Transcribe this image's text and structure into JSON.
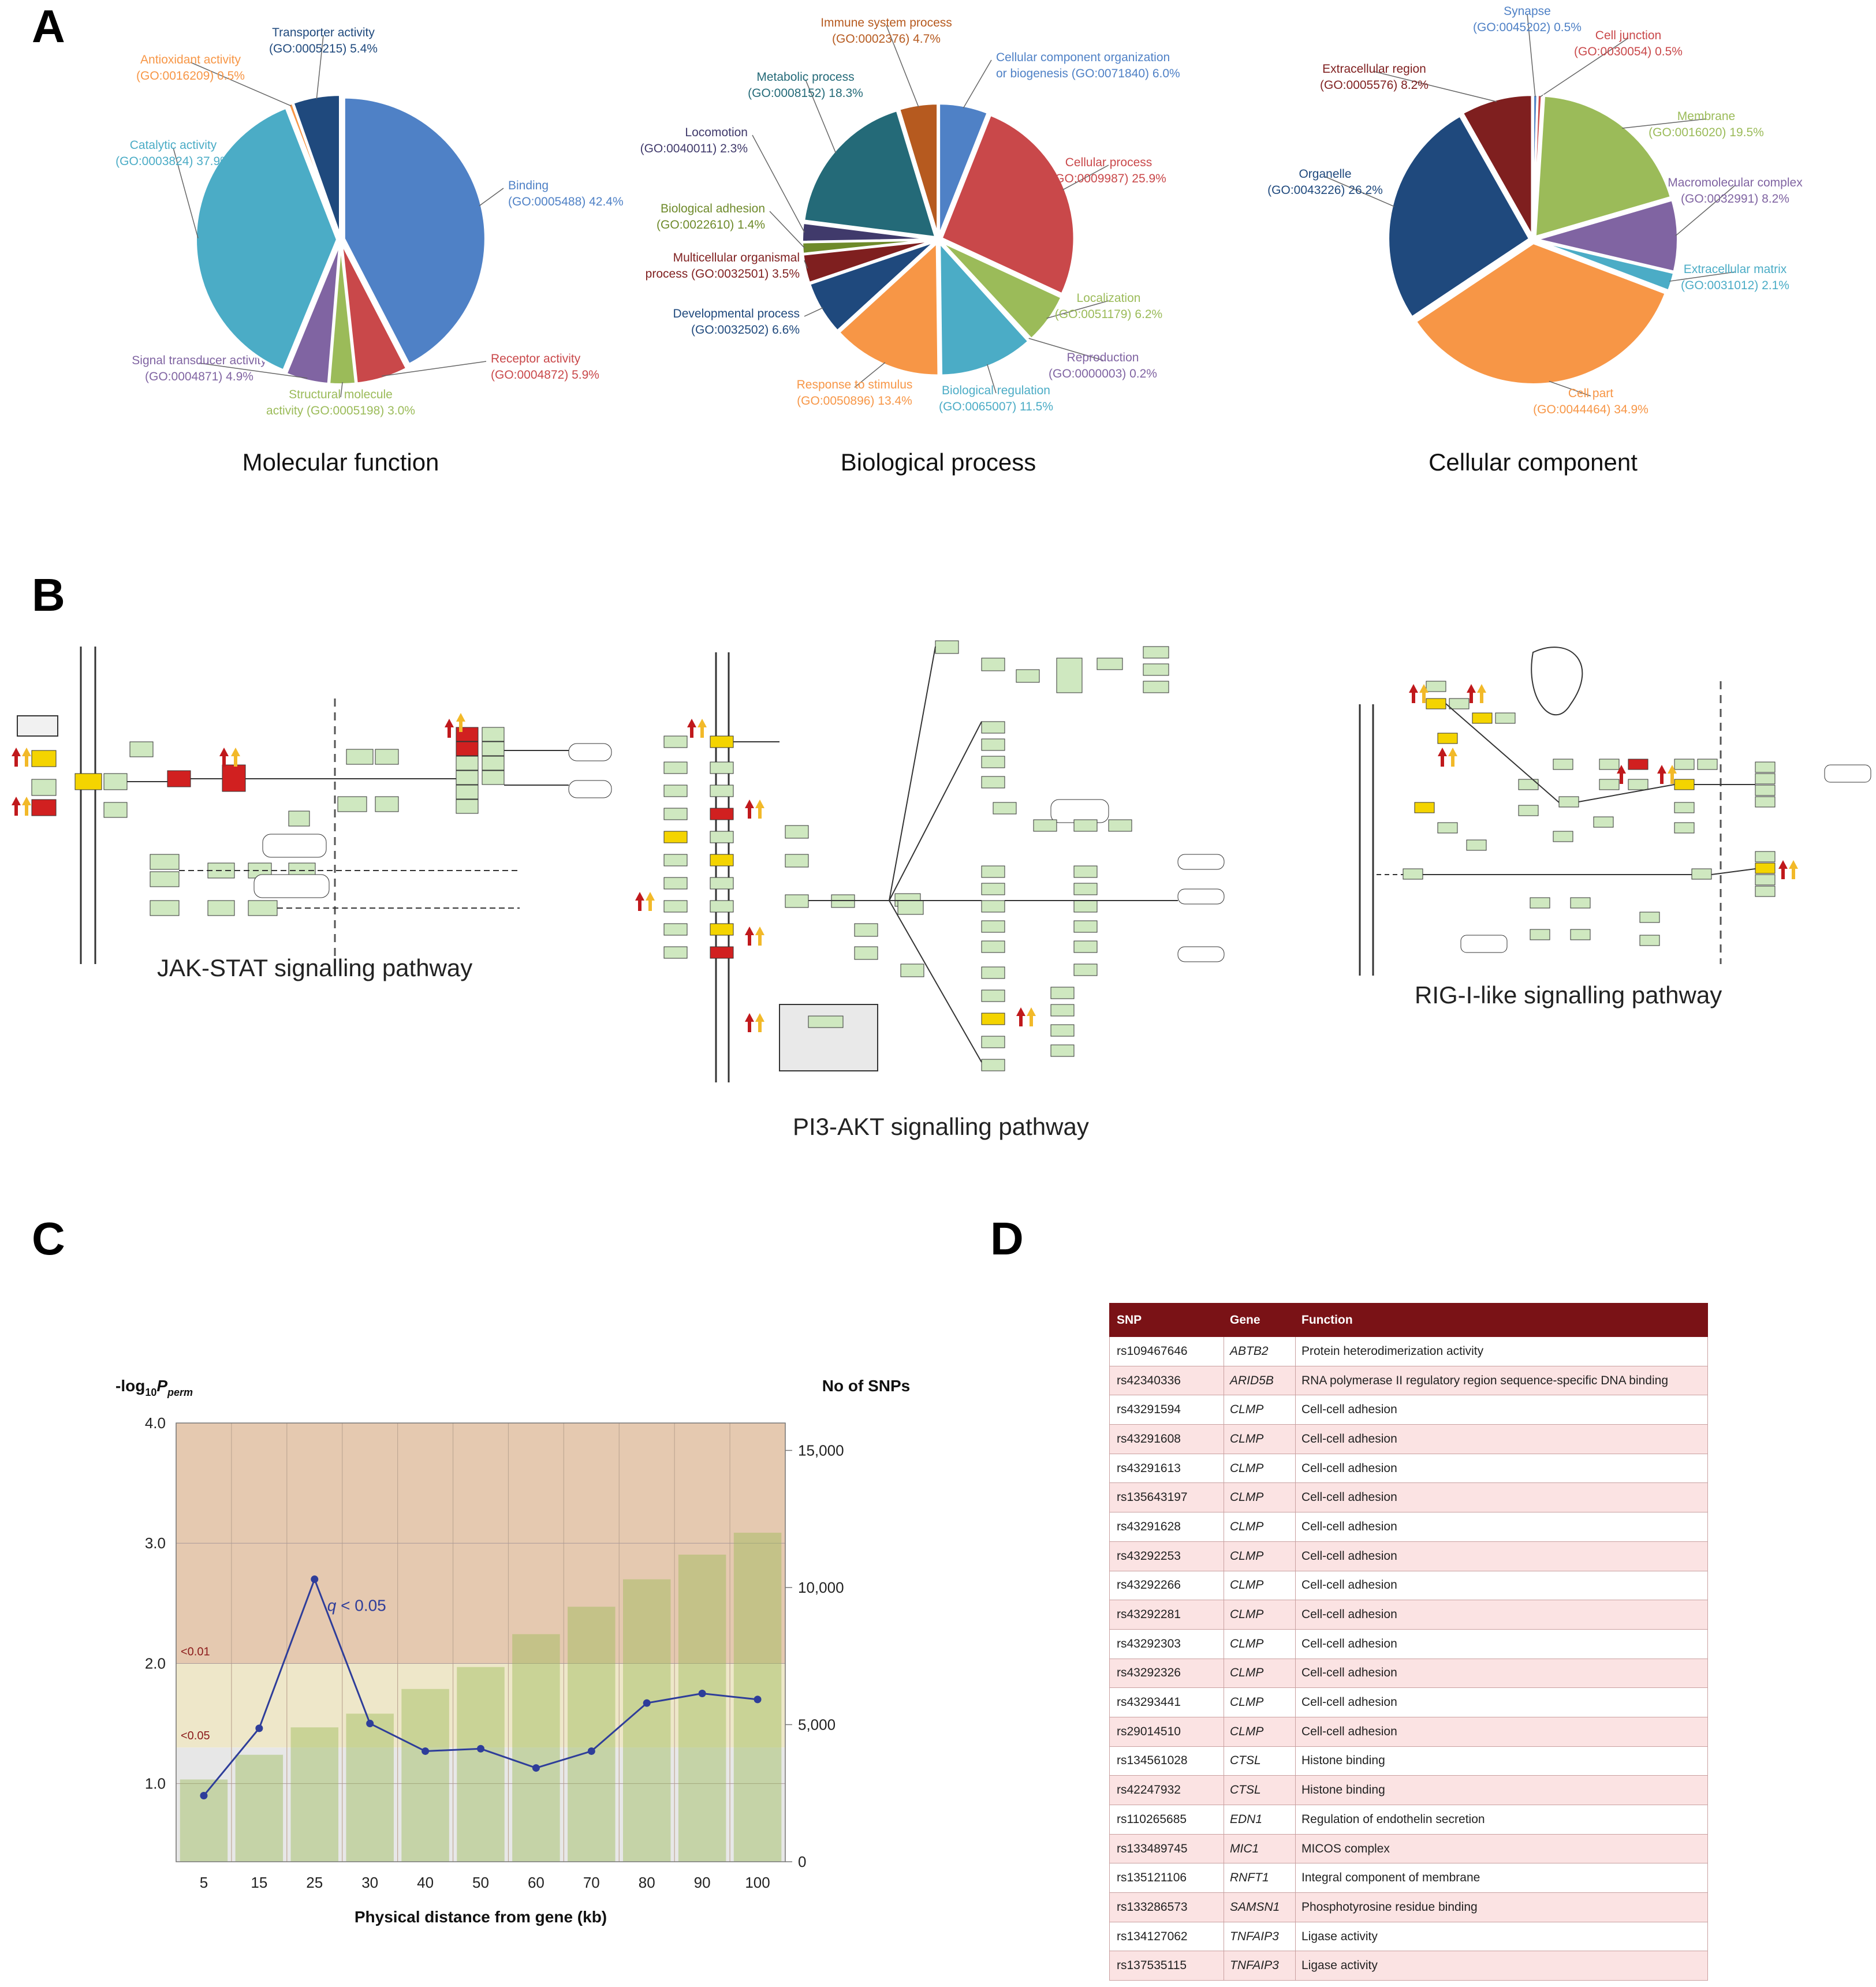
{
  "panel_labels": {
    "a": "A",
    "b": "B",
    "c": "C",
    "d": "D"
  },
  "chart_data": [
    {
      "type": "pie",
      "title": "Molecular function",
      "slices": [
        {
          "label": "Binding",
          "go": "(GO:0005488)",
          "value": 42.4,
          "pct": "42.4%",
          "color": "#4f81c6"
        },
        {
          "label": "Receptor activity",
          "go": "(GO:0004872)",
          "value": 5.9,
          "pct": "5.9%",
          "color": "#c9484a"
        },
        {
          "label": "Structural molecule",
          "go": "activity (GO:0005198)",
          "value": 3.0,
          "pct": "3.0%",
          "color": "#9bbb59"
        },
        {
          "label": "Signal transducer activity",
          "go": "(GO:0004871)",
          "value": 4.9,
          "pct": "4.9%",
          "color": "#8064a2"
        },
        {
          "label": "Catalytic activity",
          "go": "(GO:0003824)",
          "value": 37.9,
          "pct": "37.9%",
          "color": "#4bacc6"
        },
        {
          "label": "Antioxidant activity",
          "go": "(GO:0016209)",
          "value": 0.5,
          "pct": "0.5%",
          "color": "#f79646"
        },
        {
          "label": "Transporter activity",
          "go": "(GO:0005215)",
          "value": 5.4,
          "pct": "5.4%",
          "color": "#1f497d"
        }
      ]
    },
    {
      "type": "pie",
      "title": "Biological process",
      "slices": [
        {
          "label": "Cellular component organization",
          "go": "or biogenesis (GO:0071840)",
          "value": 6.0,
          "pct": "6.0%",
          "color": "#4f81c6"
        },
        {
          "label": "Cellular process",
          "go": "(GO:0009987)",
          "value": 25.9,
          "pct": "25.9%",
          "color": "#c9484a"
        },
        {
          "label": "Localization",
          "go": "(GO:0051179)",
          "value": 6.2,
          "pct": "6.2%",
          "color": "#9bbb59"
        },
        {
          "label": "Reproduction",
          "go": "(GO:0000003)",
          "value": 0.2,
          "pct": "0.2%",
          "color": "#8064a2"
        },
        {
          "label": "Biological regulation",
          "go": "(GO:0065007)",
          "value": 11.5,
          "pct": "11.5%",
          "color": "#4bacc6"
        },
        {
          "label": "Response to stimulus",
          "go": "(GO:0050896)",
          "value": 13.4,
          "pct": "13.4%",
          "color": "#f79646"
        },
        {
          "label": "Developmental process",
          "go": "(GO:0032502)",
          "value": 6.6,
          "pct": "6.6%",
          "color": "#1f497d"
        },
        {
          "label": "Multicellular organismal",
          "go": "process (GO:0032501)",
          "value": 3.5,
          "pct": "3.5%",
          "color": "#7f1f1f"
        },
        {
          "label": "Biological adhesion",
          "go": "(GO:0022610)",
          "value": 1.4,
          "pct": "1.4%",
          "color": "#6e8a2a"
        },
        {
          "label": "Locomotion",
          "go": "(GO:0040011)",
          "value": 2.3,
          "pct": "2.3%",
          "color": "#403a6b"
        },
        {
          "label": "Metabolic process",
          "go": "(GO:0008152)",
          "value": 18.3,
          "pct": "18.3%",
          "color": "#246a78"
        },
        {
          "label": "Immune system process",
          "go": "(GO:0002376)",
          "value": 4.7,
          "pct": "4.7%",
          "color": "#b65a1f"
        }
      ]
    },
    {
      "type": "pie",
      "title": "Cellular component",
      "slices": [
        {
          "label": "Synapse",
          "go": "(GO:0045202)",
          "value": 0.5,
          "pct": "0.5%",
          "color": "#4f81c6"
        },
        {
          "label": "Cell junction",
          "go": "(GO:0030054)",
          "value": 0.5,
          "pct": "0.5%",
          "color": "#c9484a"
        },
        {
          "label": "Membrane",
          "go": "(GO:0016020)",
          "value": 19.5,
          "pct": "19.5%",
          "color": "#9bbb59"
        },
        {
          "label": "Macromolecular complex",
          "go": "(GO:0032991)",
          "value": 8.2,
          "pct": "8.2%",
          "color": "#8064a2"
        },
        {
          "label": "Extracellular matrix",
          "go": "(GO:0031012)",
          "value": 2.1,
          "pct": "2.1%",
          "color": "#4bacc6"
        },
        {
          "label": "Cell part",
          "go": "(GO:0044464)",
          "value": 34.9,
          "pct": "34.9%",
          "color": "#f79646"
        },
        {
          "label": "Organelle",
          "go": "(GO:0043226)",
          "value": 26.2,
          "pct": "26.2%",
          "color": "#1f497d"
        },
        {
          "label": "Extracellular region",
          "go": "(GO:0005576)",
          "value": 8.2,
          "pct": "8.2%",
          "color": "#7f1f1f"
        }
      ]
    },
    {
      "type": "bar+line",
      "title": "",
      "ylabel_left": "-log10Pperm",
      "ylabel_left_main": "-log",
      "ylabel_left_sub": "10",
      "ylabel_left_italic": "P",
      "ylabel_left_italic_sub": "perm",
      "ylabel_right": "No of SNPs",
      "xlabel": "Physical distance from gene (kb)",
      "categories": [
        "5",
        "15",
        "25",
        "30",
        "40",
        "50",
        "60",
        "70",
        "80",
        "90",
        "100"
      ],
      "bars": [
        3000,
        3900,
        4900,
        5400,
        6300,
        7100,
        8300,
        9300,
        10300,
        11200,
        12000
      ],
      "line": [
        0.9,
        1.46,
        2.7,
        1.5,
        1.27,
        1.29,
        1.13,
        1.27,
        1.67,
        1.75,
        1.7
      ],
      "ylim_left": [
        0.35,
        4.0
      ],
      "ylim_right": [
        0,
        16000
      ],
      "left_ticks": [
        "1.0",
        "2.0",
        "3.0",
        "4.0"
      ],
      "right_ticks": [
        "0",
        "5,000",
        "10,000",
        "15,000"
      ],
      "bands": [
        {
          "label": "<0.01",
          "from": 2.0,
          "to": 4.0,
          "color": "#e5c9b0"
        },
        {
          "label": "<0.05",
          "from": 1.3,
          "to": 2.0,
          "color": "#eee7c9"
        },
        {
          "label": "",
          "from": 0.35,
          "to": 1.3,
          "color": "#e7e7e7"
        }
      ],
      "annotation": "q < 0.05",
      "annotation_italic": "q",
      "annotation_rest": " < 0.05",
      "bar_color": "#9bbb59",
      "line_color": "#2e3d9a"
    }
  ],
  "pathways": {
    "jak": "JAK-STAT signalling pathway",
    "pi3k": "PI3-AKT signalling pathway",
    "rig": "RIG-I-like signalling pathway"
  },
  "table": {
    "headers": [
      "SNP",
      "Gene",
      "Function"
    ],
    "rows": [
      [
        "rs109467646",
        "ABTB2",
        "Protein heterodimerization activity"
      ],
      [
        "rs42340336",
        "ARID5B",
        "RNA polymerase II regulatory region sequence-specific DNA binding"
      ],
      [
        "rs43291594",
        "CLMP",
        "Cell-cell adhesion"
      ],
      [
        "rs43291608",
        "CLMP",
        "Cell-cell adhesion"
      ],
      [
        "rs43291613",
        "CLMP",
        "Cell-cell adhesion"
      ],
      [
        "rs135643197",
        "CLMP",
        "Cell-cell adhesion"
      ],
      [
        "rs43291628",
        "CLMP",
        "Cell-cell adhesion"
      ],
      [
        "rs43292253",
        "CLMP",
        "Cell-cell adhesion"
      ],
      [
        "rs43292266",
        "CLMP",
        "Cell-cell adhesion"
      ],
      [
        "rs43292281",
        "CLMP",
        "Cell-cell adhesion"
      ],
      [
        "rs43292303",
        "CLMP",
        "Cell-cell adhesion"
      ],
      [
        "rs43292326",
        "CLMP",
        "Cell-cell adhesion"
      ],
      [
        "rs43293441",
        "CLMP",
        "Cell-cell adhesion"
      ],
      [
        "rs29014510",
        "CLMP",
        "Cell-cell adhesion"
      ],
      [
        "rs134561028",
        "CTSL",
        "Histone binding"
      ],
      [
        "rs42247932",
        "CTSL",
        "Histone binding"
      ],
      [
        "rs110265685",
        "EDN1",
        "Regulation of endothelin secretion"
      ],
      [
        "rs133489745",
        "MIC1",
        "MICOS complex"
      ],
      [
        "rs135121106",
        "RNFT1",
        "Integral component of membrane"
      ],
      [
        "rs133286573",
        "SAMSN1",
        "Phosphotyrosine residue binding"
      ],
      [
        "rs134127062",
        "TNFAIP3",
        "Ligase activity"
      ],
      [
        "rs137535115",
        "TNFAIP3",
        "Ligase activity"
      ]
    ]
  }
}
